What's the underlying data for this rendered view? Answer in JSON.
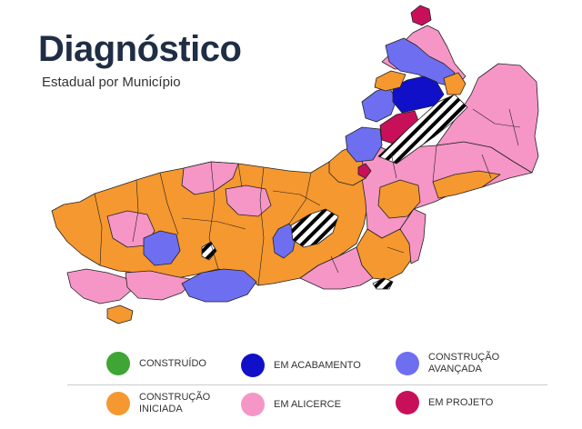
{
  "header": {
    "title": "Diagnóstico",
    "subtitle": "Estadual por Município"
  },
  "colors": {
    "construido": "#3fa535",
    "em_acabamento": "#1010c8",
    "construcao_avancada": "#6e6ef0",
    "construcao_iniciada": "#f5982f",
    "em_alicerce": "#f596c6",
    "em_projeto": "#c8105a",
    "sem_dados_hatch": "#000000",
    "border": "#222222"
  },
  "legend": [
    {
      "label": "CONSTRUÍDO",
      "color": "#3fa535"
    },
    {
      "label": "EM ACABAMENTO",
      "color": "#1010c8"
    },
    {
      "label": "CONSTRUÇÃO\nAVANÇADA",
      "color": "#6e6ef0"
    },
    {
      "label": "CONSTRUÇÃO\nINICIADA",
      "color": "#f5982f"
    },
    {
      "label": "EM ALICERCE",
      "color": "#f596c6"
    },
    {
      "label": "EM PROJETO",
      "color": "#c8105a"
    }
  ]
}
